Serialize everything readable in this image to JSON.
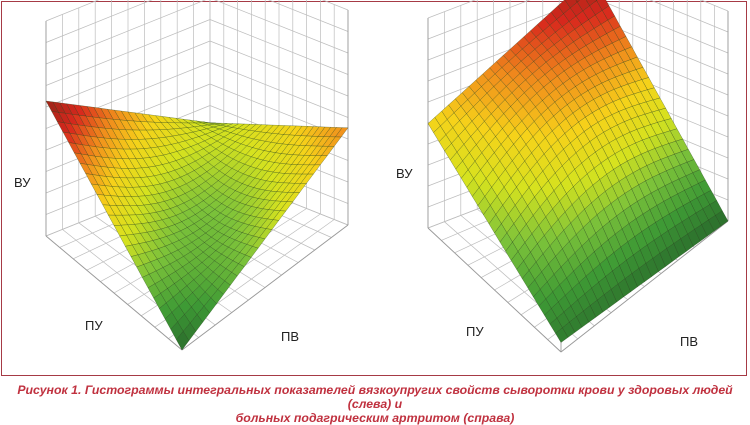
{
  "caption": {
    "line1": "Рисунок 1. Гистограммы интегральных показателей вязкоупругих свойств сыворотки крови у здоровых людей (слева) и",
    "line2": "больных подагрическим артритом (справа)"
  },
  "colors": {
    "frame": "#a63a45",
    "caption": "#c0313f",
    "colormap": [
      "#2a6b2c",
      "#3e9a35",
      "#7cc23a",
      "#d6e21f",
      "#f6d21a",
      "#f08a1c",
      "#d8281d",
      "#962418"
    ]
  },
  "chart_data": [
    {
      "type": "surface",
      "title": "",
      "xlabel": "ПВ",
      "ylabel": "ПУ",
      "zlabel": "ВУ",
      "grid": true,
      "shape": "saddle: high at left corner, moderate at right corner, lowest at front corner",
      "z_corners": {
        "left": 1.0,
        "back": 0.35,
        "right": 0.72,
        "front": 0.0
      }
    },
    {
      "type": "surface",
      "title": "",
      "xlabel": "ПВ",
      "ylabel": "ПУ",
      "zlabel": "ВУ",
      "grid": true,
      "shape": "sloped: highest at back corner, lowest at front and right corners",
      "z_corners": {
        "left": 0.55,
        "back": 1.0,
        "right": 0.0,
        "front": 0.05
      }
    }
  ]
}
